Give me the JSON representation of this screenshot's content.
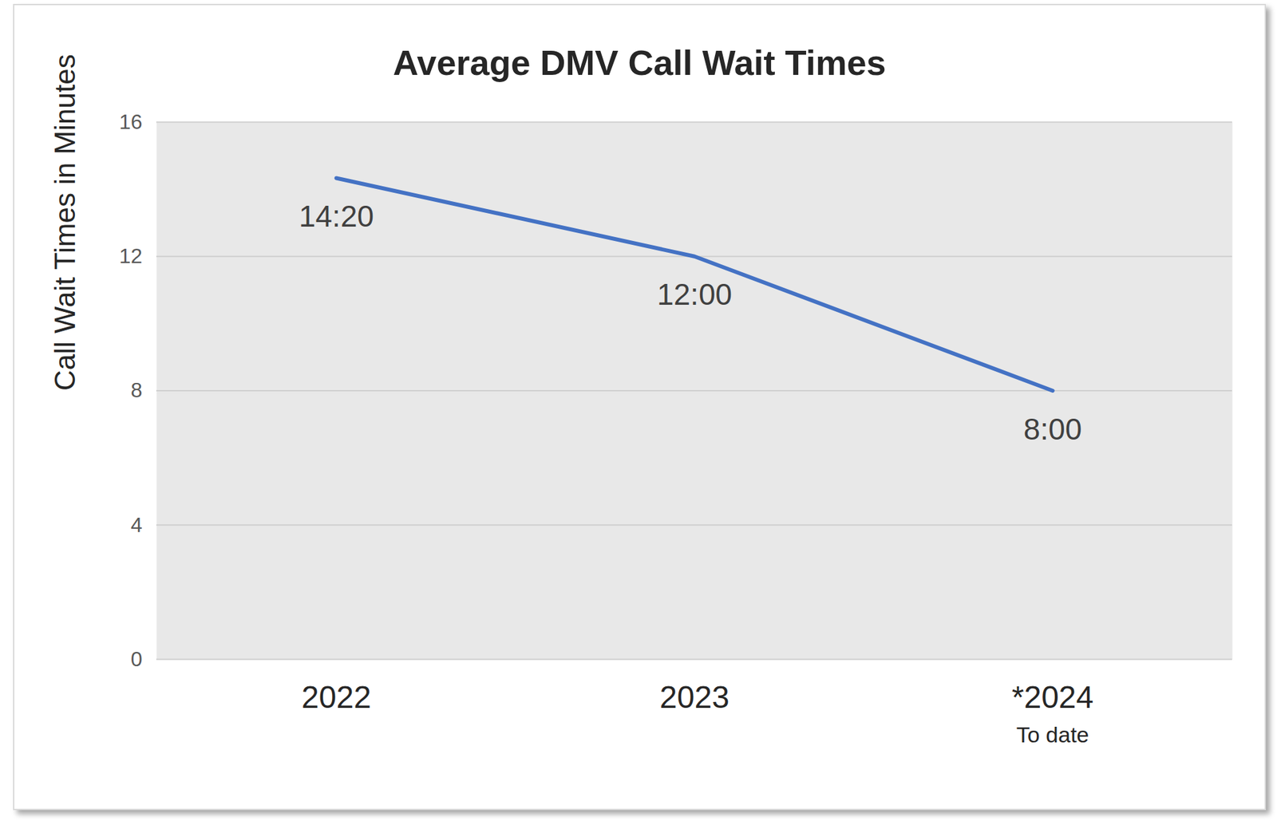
{
  "chart_data": {
    "type": "line",
    "title": "Average DMV Call Wait Times",
    "y_label": "Call Wait Times in Minutes",
    "categories": [
      "2022",
      "2023",
      "*2024"
    ],
    "values": [
      14.333,
      12,
      8
    ],
    "value_labels": [
      "14:20",
      "12:00",
      "8:00"
    ],
    "color": "#4472c4",
    "ylim": [
      0,
      16
    ],
    "yticks": [
      0,
      4,
      8,
      12,
      16
    ],
    "grid": true,
    "data_labels": true,
    "annotations": [
      {
        "text": "To date",
        "category": "*2024"
      }
    ]
  }
}
